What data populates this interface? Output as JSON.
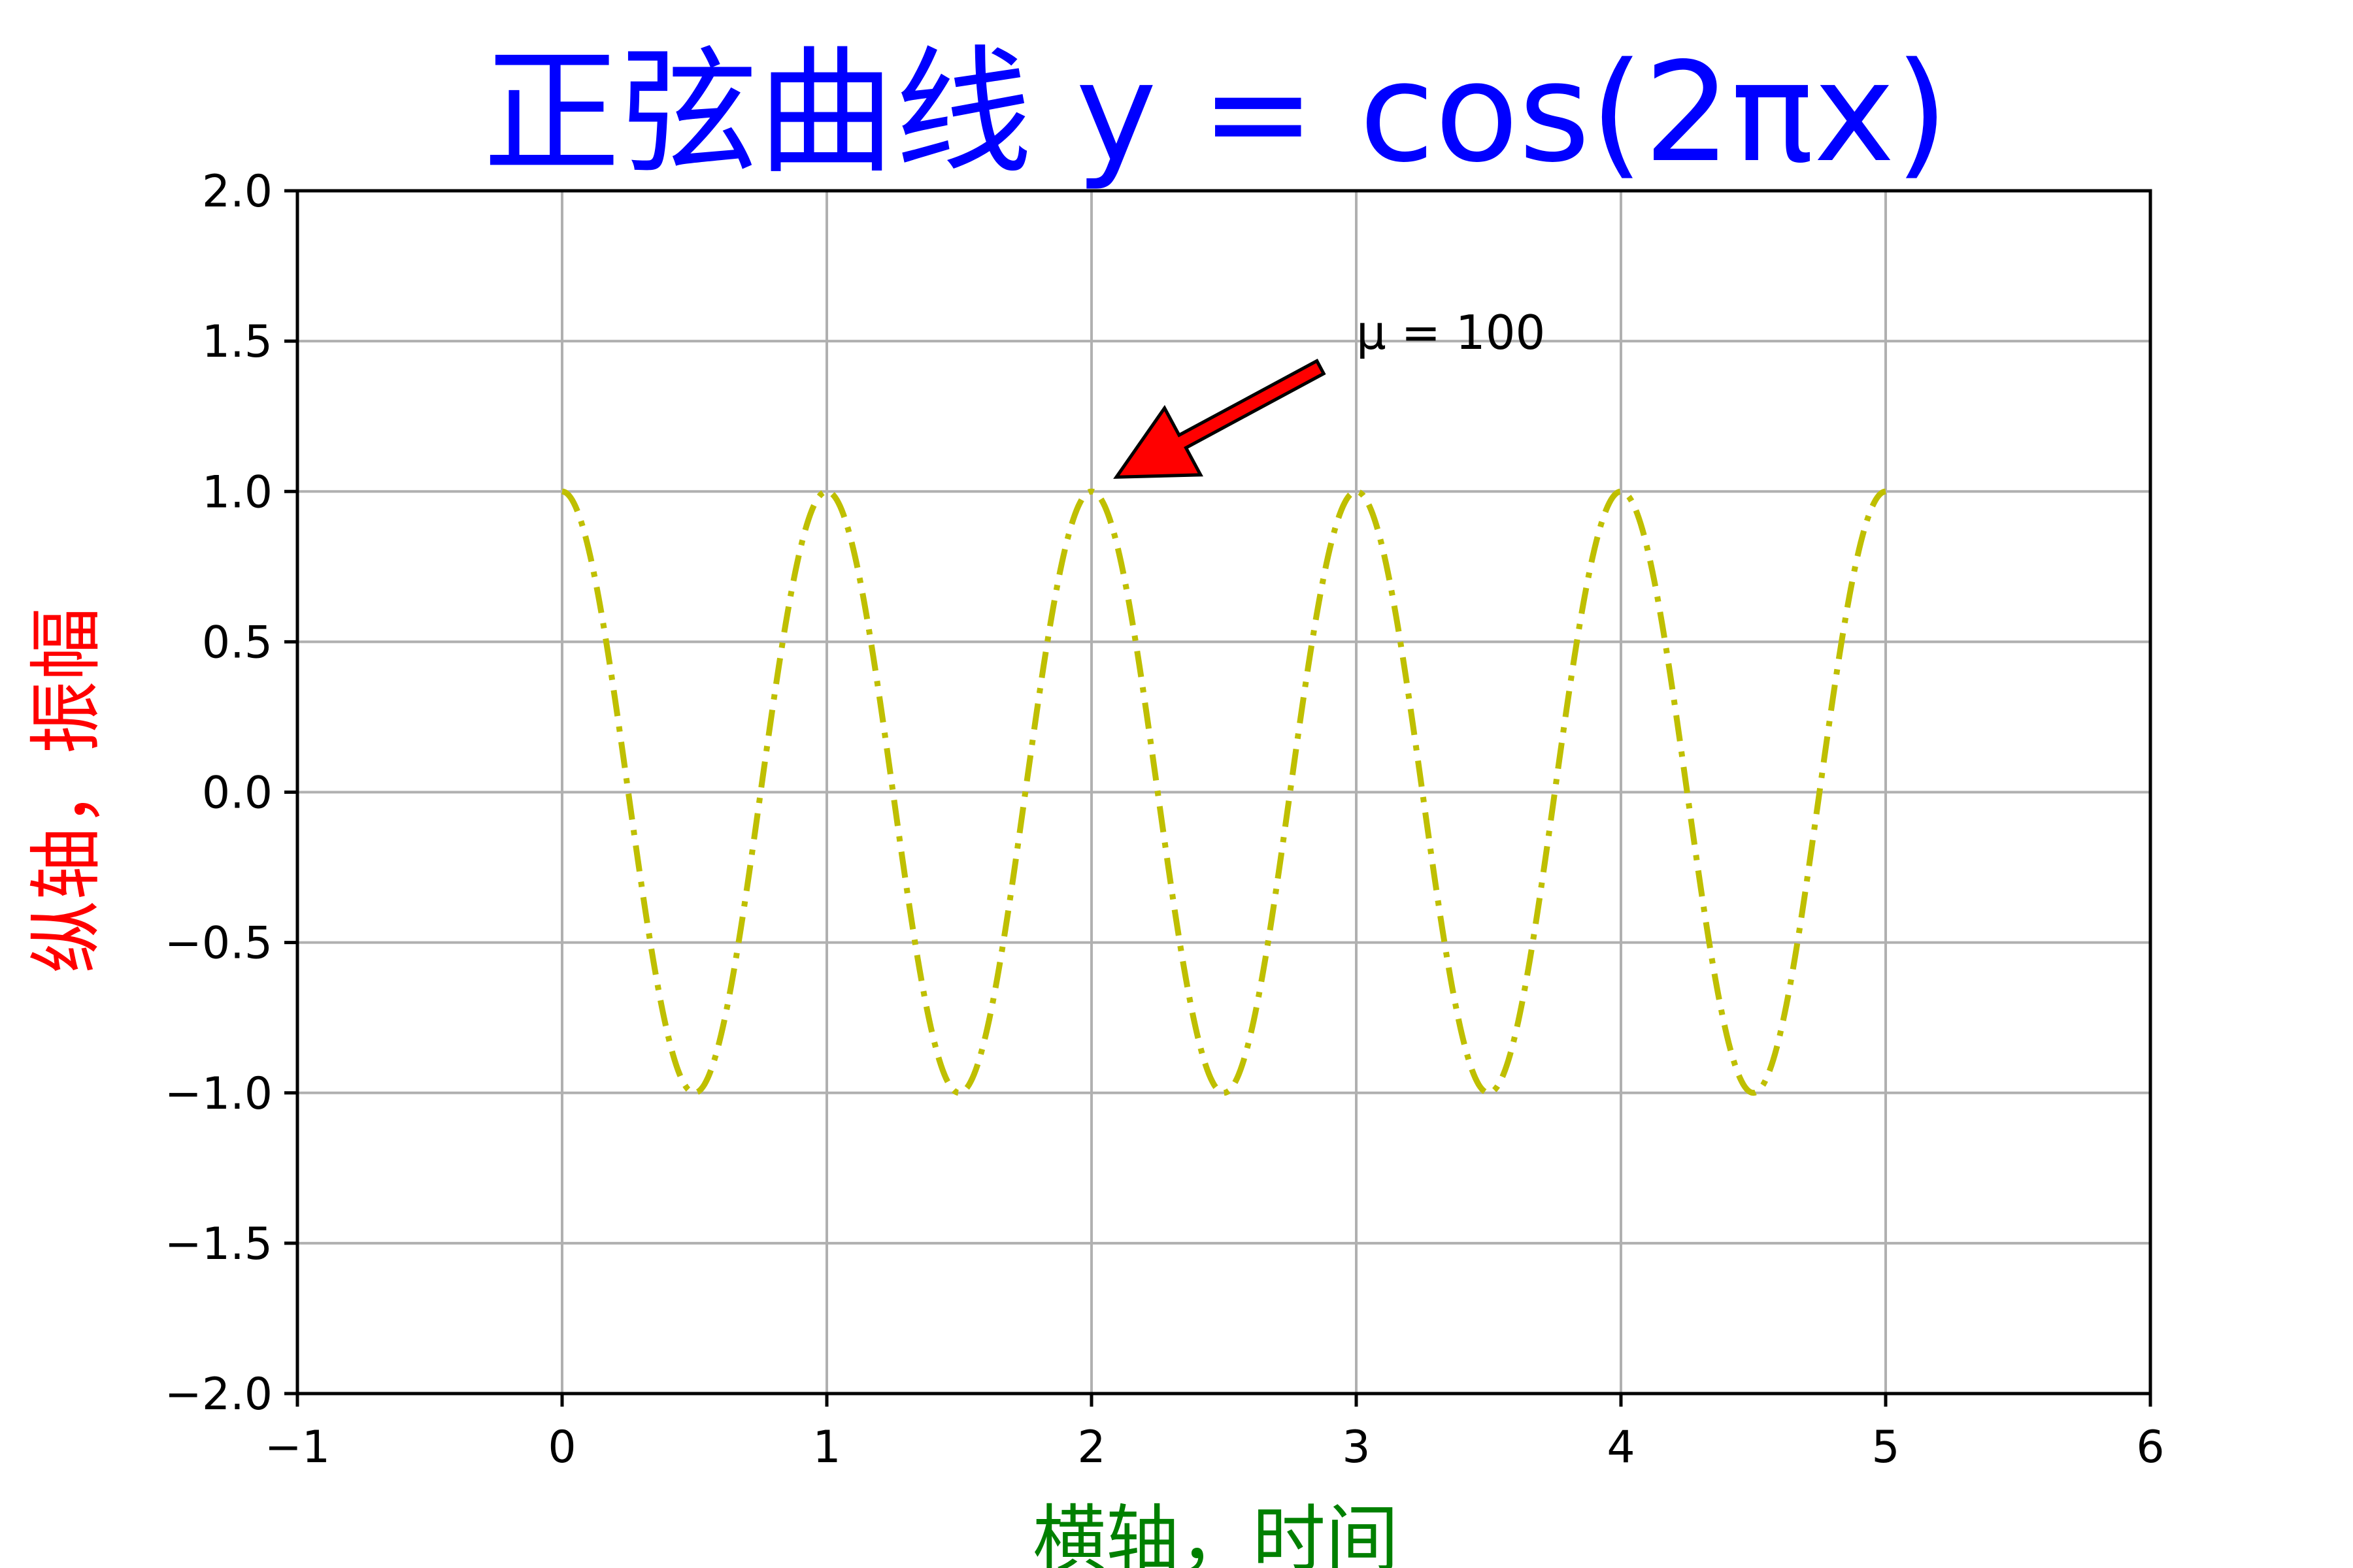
{
  "chart_data": {
    "type": "line",
    "title": "正弦曲线 y = cos(2πx)",
    "xlabel": "横轴，时间",
    "ylabel": "纵轴，振幅",
    "xlim": [
      -1,
      6
    ],
    "ylim": [
      -2,
      2
    ],
    "x_ticks": [
      -1,
      0,
      1,
      2,
      3,
      4,
      5,
      6
    ],
    "y_ticks": [
      -2.0,
      -1.5,
      -1.0,
      -0.5,
      0.0,
      0.5,
      1.0,
      1.5,
      2.0
    ],
    "x_tick_labels": [
      "−1",
      "0",
      "1",
      "2",
      "3",
      "4",
      "5",
      "6"
    ],
    "y_tick_labels": [
      "−2.0",
      "−1.5",
      "−1.0",
      "−0.5",
      "0.0",
      "0.5",
      "1.0",
      "1.5",
      "2.0"
    ],
    "grid": true,
    "series": [
      {
        "function": "cos(2*pi*x)",
        "x_range": [
          0,
          5
        ],
        "line_style": "dash-dot",
        "color": "#bfbf00"
      }
    ],
    "annotation": {
      "text": "μ = 100",
      "point": [
        2,
        1
      ],
      "text_position": [
        3,
        1.5
      ],
      "arrow_color": "#ff0000"
    },
    "colors": {
      "title": "#0000ff",
      "xlabel": "#008000",
      "ylabel": "#ff0000",
      "grid": "#b0b0b0"
    }
  }
}
